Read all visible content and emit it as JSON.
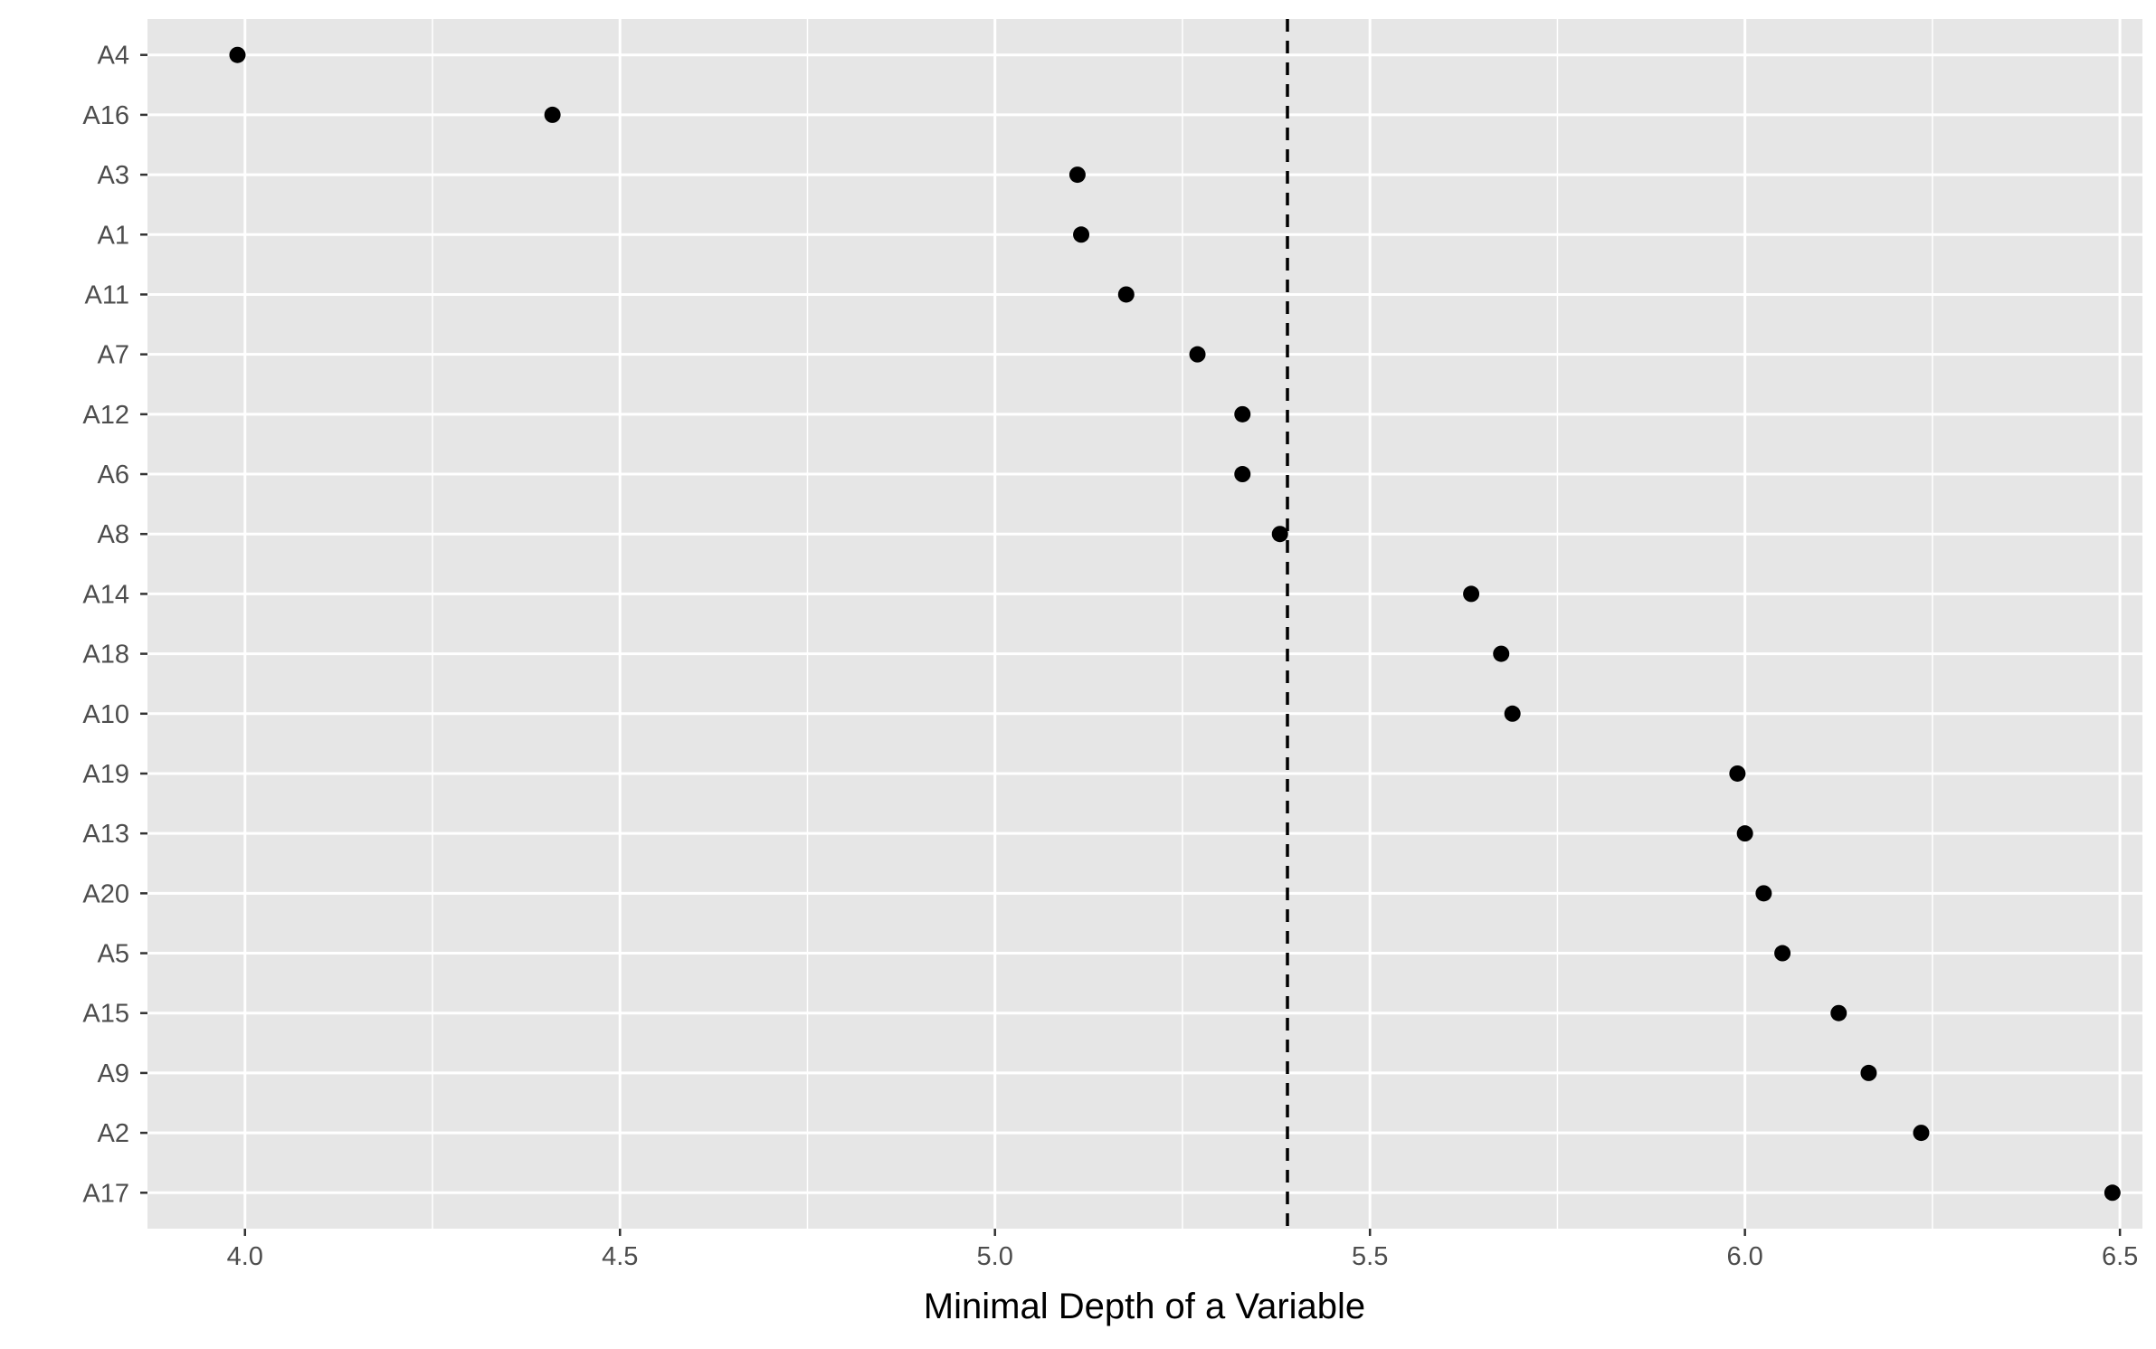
{
  "chart_data": {
    "type": "scatter",
    "title": "",
    "xlabel": "Minimal Depth of a Variable",
    "ylabel": "",
    "xlim": [
      3.87,
      6.53
    ],
    "x_ticks": [
      4.0,
      4.5,
      5.0,
      5.5,
      6.0,
      6.5
    ],
    "x_tick_labels": [
      "4.0",
      "4.5",
      "5.0",
      "5.5",
      "6.0",
      "6.5"
    ],
    "categories": [
      "A4",
      "A16",
      "A3",
      "A1",
      "A11",
      "A7",
      "A12",
      "A6",
      "A8",
      "A14",
      "A18",
      "A10",
      "A19",
      "A13",
      "A20",
      "A5",
      "A15",
      "A9",
      "A2",
      "A17"
    ],
    "values": [
      3.99,
      4.41,
      5.11,
      5.115,
      5.175,
      5.27,
      5.33,
      5.33,
      5.38,
      5.635,
      5.675,
      5.69,
      5.99,
      6.0,
      6.025,
      6.05,
      6.125,
      6.165,
      6.235,
      6.49
    ],
    "reference_line": {
      "x": 5.39,
      "style": "dashed"
    },
    "grid": true,
    "colors": {
      "panel": "#e6e6e6",
      "grid": "#ffffff",
      "point": "#000000",
      "line": "#000000"
    }
  }
}
